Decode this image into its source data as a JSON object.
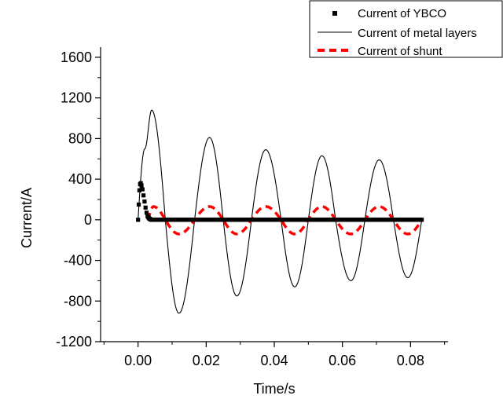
{
  "chart_data": {
    "type": "line",
    "title": "",
    "xlabel": "Time/s",
    "ylabel": "Current/A",
    "xlim": [
      -0.011,
      0.091
    ],
    "ylim": [
      -1200,
      1700
    ],
    "x_ticks": [
      0.0,
      0.02,
      0.04,
      0.06,
      0.08
    ],
    "x_tick_labels": [
      "0.00",
      "0.02",
      "0.04",
      "0.06",
      "0.08"
    ],
    "y_ticks": [
      -1200,
      -800,
      -400,
      0,
      400,
      800,
      1200,
      1600
    ],
    "y_tick_labels": [
      "-1200",
      "-800",
      "-400",
      "0",
      "400",
      "800",
      "1200",
      "1600"
    ],
    "grid": false,
    "legend_position": "top-right",
    "legend": [
      "Current of YBCO",
      "Current of metal layers",
      "Current of shunt"
    ],
    "colors": {
      "ybco": "#000000",
      "metal": "#000000",
      "shunt": "#ff0000"
    },
    "series": [
      {
        "name": "Current of YBCO",
        "style": "square-markers",
        "x": [
          0.0,
          0.0002,
          0.0004,
          0.0006,
          0.0008,
          0.001,
          0.0013,
          0.0016,
          0.0019,
          0.0022,
          0.0025,
          0.0028,
          0.0032,
          0.0036,
          0.004,
          0.005,
          0.01,
          0.02,
          0.03,
          0.04,
          0.05,
          0.06,
          0.07,
          0.08,
          0.0833
        ],
        "y": [
          0,
          150,
          290,
          350,
          360,
          340,
          300,
          240,
          180,
          120,
          70,
          35,
          15,
          5,
          0,
          0,
          0,
          0,
          0,
          0,
          0,
          0,
          0,
          0,
          0
        ]
      },
      {
        "name": "Current of metal layers",
        "style": "thin-line",
        "x": [
          0.0,
          0.002,
          0.004,
          0.008,
          0.012,
          0.0166,
          0.021,
          0.025,
          0.029,
          0.0333,
          0.0375,
          0.042,
          0.046,
          0.05,
          0.054,
          0.058,
          0.0625,
          0.0666,
          0.0708,
          0.075,
          0.0792,
          0.0833
        ],
        "y": [
          0,
          700,
          1080,
          0,
          -920,
          0,
          810,
          0,
          -750,
          0,
          690,
          0,
          -660,
          0,
          630,
          0,
          -600,
          0,
          590,
          0,
          -570,
          0
        ]
      },
      {
        "name": "Current of shunt",
        "style": "dashed-line",
        "x": [
          0.003,
          0.0045,
          0.008,
          0.012,
          0.0166,
          0.021,
          0.025,
          0.029,
          0.0333,
          0.0375,
          0.042,
          0.046,
          0.05,
          0.054,
          0.058,
          0.0625,
          0.0666,
          0.0708,
          0.075,
          0.0792,
          0.0833
        ],
        "y": [
          0,
          130,
          0,
          -140,
          0,
          130,
          0,
          -140,
          0,
          130,
          0,
          -140,
          0,
          130,
          0,
          -140,
          0,
          130,
          0,
          -140,
          0
        ]
      }
    ]
  }
}
